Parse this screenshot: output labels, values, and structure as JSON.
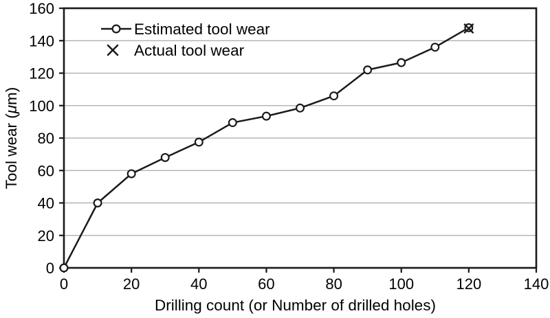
{
  "chart_data": {
    "type": "line",
    "title": "",
    "xlabel": "Drilling count (or Number of drilled holes)",
    "ylabel": "Tool wear (μm)",
    "ylabel_parts": {
      "prefix": "Tool wear (",
      "italic_char": "μ",
      "suffix": "m)"
    },
    "xlim": [
      0,
      140
    ],
    "ylim": [
      0,
      160
    ],
    "x_ticks": [
      0,
      20,
      40,
      60,
      80,
      100,
      120,
      140
    ],
    "y_ticks": [
      0,
      20,
      40,
      60,
      80,
      100,
      120,
      140,
      160
    ],
    "grid": "horizontal-only",
    "legend_position": "inside-top-left",
    "legend": [
      {
        "label": "Estimated tool wear",
        "marker": "circle-on-line"
      },
      {
        "label": "Actual tool wear",
        "marker": "x-cross"
      }
    ],
    "series": [
      {
        "name": "Estimated tool wear",
        "type": "line-with-markers",
        "marker": "open-circle",
        "x": [
          0,
          10,
          20,
          30,
          40,
          50,
          60,
          70,
          80,
          90,
          100,
          110,
          120
        ],
        "y": [
          0,
          40,
          58,
          68,
          77.5,
          89.5,
          93.5,
          98.5,
          106,
          122,
          126.5,
          136,
          148
        ]
      },
      {
        "name": "Actual tool wear",
        "type": "scatter",
        "marker": "x-cross",
        "x": [
          120
        ],
        "y": [
          147.5
        ]
      }
    ],
    "colors": {
      "line": "#1a1a1a",
      "marker_fill": "#ffffff",
      "grid": "#a8a8a8",
      "axis": "#1a1a1a",
      "text": "#000000",
      "background": "#ffffff"
    }
  }
}
